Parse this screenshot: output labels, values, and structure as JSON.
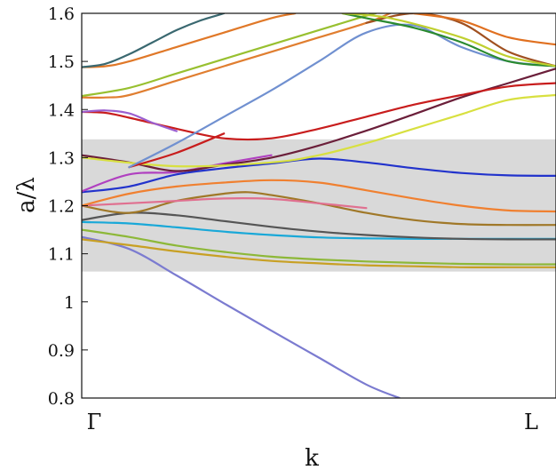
{
  "chart_data": {
    "type": "line",
    "xlabel": "k",
    "ylabel": "a/λ",
    "ylim": [
      0.8,
      1.6
    ],
    "xlim": [
      0,
      1
    ],
    "x_tick_labels": [
      "Γ",
      "L"
    ],
    "y_ticks": [
      0.8,
      0.9,
      1.0,
      1.1,
      1.2,
      1.3,
      1.4,
      1.5,
      1.6
    ],
    "y_tick_labels": [
      "0.8",
      "0.9",
      "1",
      "1.1",
      "1.2",
      "1.3",
      "1.4",
      "1.5",
      "1.6"
    ],
    "band_gap": {
      "from": 1.063,
      "to": 1.338,
      "color": "#d9d9d9"
    },
    "grid": false,
    "series": [
      {
        "color": "#7b7bd0",
        "x": [
          0,
          0.1,
          0.2,
          0.3,
          0.4,
          0.5,
          0.6,
          0.67
        ],
        "y": [
          1.135,
          1.11,
          1.055,
          0.997,
          0.94,
          0.884,
          0.828,
          0.8
        ]
      },
      {
        "color": "#c8a024",
        "x": [
          0,
          0.1,
          0.2,
          0.3,
          0.4,
          0.5,
          0.6,
          0.7,
          0.8,
          0.9,
          1
        ],
        "y": [
          1.13,
          1.118,
          1.105,
          1.094,
          1.085,
          1.08,
          1.076,
          1.074,
          1.072,
          1.072,
          1.072
        ]
      },
      {
        "color": "#8db838",
        "x": [
          0,
          0.1,
          0.2,
          0.3,
          0.4,
          0.5,
          0.6,
          0.7,
          0.8,
          0.9,
          1
        ],
        "y": [
          1.15,
          1.135,
          1.117,
          1.104,
          1.094,
          1.088,
          1.084,
          1.081,
          1.079,
          1.078,
          1.078
        ]
      },
      {
        "color": "#19a8d8",
        "x": [
          0,
          0.1,
          0.2,
          0.3,
          0.4,
          0.5,
          0.6,
          0.7,
          0.8,
          0.9,
          1
        ],
        "y": [
          1.166,
          1.163,
          1.155,
          1.146,
          1.139,
          1.134,
          1.132,
          1.131,
          1.131,
          1.131,
          1.131
        ]
      },
      {
        "color": "#555555",
        "x": [
          0,
          0.1,
          0.2,
          0.3,
          0.4,
          0.5,
          0.6,
          0.7,
          0.8,
          0.9,
          1
        ],
        "y": [
          1.17,
          1.185,
          1.18,
          1.168,
          1.156,
          1.146,
          1.139,
          1.134,
          1.131,
          1.13,
          1.13
        ]
      },
      {
        "color": "#a07828",
        "x": [
          0,
          0.1,
          0.2,
          0.3,
          0.35,
          0.4,
          0.5,
          0.6,
          0.7,
          0.8,
          0.9,
          1
        ],
        "y": [
          1.2,
          1.185,
          1.21,
          1.225,
          1.228,
          1.222,
          1.205,
          1.185,
          1.17,
          1.162,
          1.16,
          1.16
        ]
      },
      {
        "color": "#e07090",
        "x": [
          0,
          0.1,
          0.2,
          0.3,
          0.4,
          0.5,
          0.6
        ],
        "y": [
          1.2,
          1.205,
          1.21,
          1.215,
          1.214,
          1.205,
          1.195
        ]
      },
      {
        "color": "#f08030",
        "x": [
          0,
          0.1,
          0.2,
          0.3,
          0.4,
          0.5,
          0.6,
          0.7,
          0.8,
          0.9,
          1
        ],
        "y": [
          1.2,
          1.225,
          1.24,
          1.248,
          1.253,
          1.248,
          1.232,
          1.215,
          1.2,
          1.19,
          1.188
        ]
      },
      {
        "color": "#2233cc",
        "x": [
          0,
          0.1,
          0.2,
          0.3,
          0.4,
          0.5,
          0.6,
          0.7,
          0.8,
          0.9,
          1
        ],
        "y": [
          1.228,
          1.24,
          1.265,
          1.278,
          1.288,
          1.298,
          1.29,
          1.278,
          1.268,
          1.263,
          1.262
        ]
      },
      {
        "color": "#b040c0",
        "x": [
          0,
          0.1,
          0.2,
          0.3,
          0.4
        ],
        "y": [
          1.23,
          1.265,
          1.27,
          1.288,
          1.305
        ]
      },
      {
        "color": "#6b1f3a",
        "x": [
          0,
          0.1,
          0.2,
          0.3,
          0.4,
          0.5,
          0.6,
          0.7,
          0.8,
          0.9,
          1
        ],
        "y": [
          1.305,
          1.29,
          1.272,
          1.285,
          1.3,
          1.325,
          1.356,
          1.39,
          1.425,
          1.455,
          1.485
        ]
      },
      {
        "color": "#d8e040",
        "x": [
          0,
          0.2,
          0.4,
          0.5,
          0.6,
          0.7,
          0.8,
          0.9,
          1
        ],
        "y": [
          1.3,
          1.282,
          1.29,
          1.305,
          1.33,
          1.36,
          1.39,
          1.42,
          1.43
        ]
      },
      {
        "color": "#c81d1d",
        "x": [
          0,
          0.05,
          0.1,
          0.2,
          0.3,
          0.4,
          0.5,
          0.6,
          0.7,
          0.8,
          0.9,
          1
        ],
        "y": [
          1.395,
          1.393,
          1.383,
          1.36,
          1.34,
          1.34,
          1.36,
          1.385,
          1.41,
          1.43,
          1.448,
          1.455
        ]
      },
      {
        "color": "#9b5fd0",
        "x": [
          0,
          0.05,
          0.1,
          0.15,
          0.2
        ],
        "y": [
          1.395,
          1.398,
          1.392,
          1.372,
          1.355
        ]
      },
      {
        "color": "#c81d1d",
        "x": [
          0.1,
          0.2,
          0.3
        ],
        "y": [
          1.28,
          1.31,
          1.35
        ]
      },
      {
        "color": "#7090d0",
        "x": [
          0.1,
          0.2,
          0.3,
          0.4,
          0.5,
          0.6,
          0.7,
          0.8,
          0.9,
          1
        ],
        "y": [
          1.28,
          1.33,
          1.385,
          1.44,
          1.5,
          1.56,
          1.575,
          1.53,
          1.5,
          1.49
        ]
      },
      {
        "color": "#e07e30",
        "x": [
          0,
          0.05,
          0.1,
          0.2,
          0.3,
          0.4,
          0.5,
          0.6,
          0.65
        ],
        "y": [
          1.425,
          1.425,
          1.43,
          1.46,
          1.49,
          1.52,
          1.55,
          1.58,
          1.6
        ]
      },
      {
        "color": "#98c030",
        "x": [
          0,
          0.1,
          0.2,
          0.3,
          0.4,
          0.5,
          0.6,
          0.62
        ],
        "y": [
          1.428,
          1.445,
          1.475,
          1.505,
          1.535,
          1.565,
          1.595,
          1.6
        ]
      },
      {
        "color": "#a05020",
        "x": [
          0.6,
          0.7,
          0.8,
          0.9,
          1
        ],
        "y": [
          1.58,
          1.6,
          1.58,
          1.52,
          1.49
        ]
      },
      {
        "color": "#e07020",
        "x": [
          0.7,
          0.8,
          0.9,
          1
        ],
        "y": [
          1.6,
          1.585,
          1.55,
          1.535
        ]
      },
      {
        "color": "#2a8a30",
        "x": [
          0.55,
          0.6,
          0.7,
          0.8,
          0.9,
          1
        ],
        "y": [
          1.6,
          1.59,
          1.57,
          1.54,
          1.5,
          1.49
        ]
      },
      {
        "color": "#c0d030",
        "x": [
          0.55,
          0.65,
          0.8,
          0.9,
          1
        ],
        "y": [
          1.6,
          1.59,
          1.55,
          1.51,
          1.49
        ]
      },
      {
        "color": "#e07828",
        "x": [
          0,
          0.05,
          0.1,
          0.2,
          0.3,
          0.4,
          0.45
        ],
        "y": [
          1.488,
          1.49,
          1.5,
          1.53,
          1.56,
          1.59,
          1.6
        ]
      },
      {
        "color": "#3a6870",
        "x": [
          0,
          0.05,
          0.1,
          0.15,
          0.2,
          0.25,
          0.3
        ],
        "y": [
          1.488,
          1.495,
          1.515,
          1.54,
          1.565,
          1.585,
          1.6
        ]
      }
    ]
  }
}
